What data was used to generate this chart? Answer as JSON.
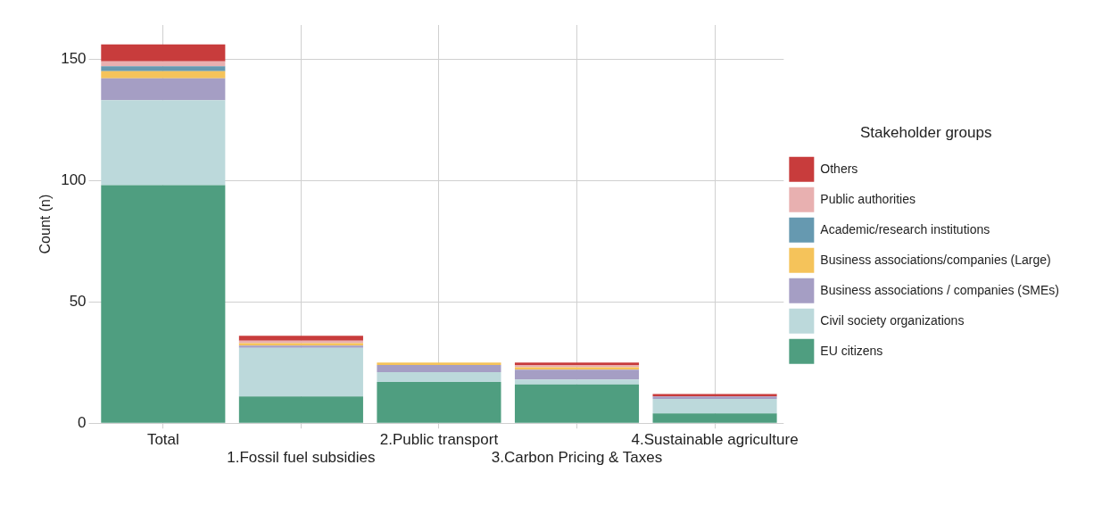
{
  "chart_data": {
    "type": "bar",
    "stacked": true,
    "ylabel": "Count (n)",
    "legend_title": "Stakeholder groups",
    "legend": "right",
    "grid": true,
    "categories": [
      "Total",
      "1.Fossil fuel subsidies",
      "2.Public transport",
      "3.Carbon Pricing & Taxes",
      "4.Sustainable agriculture"
    ],
    "ylim": [
      0,
      164
    ],
    "yticks": [
      0,
      50,
      100,
      150
    ],
    "series": [
      {
        "name": "EU citizens",
        "color": "#4f9e80",
        "values": [
          98,
          11,
          17,
          16,
          4
        ]
      },
      {
        "name": "Civil society organizations",
        "color": "#bcd9db",
        "values": [
          35,
          20,
          4,
          2,
          6
        ]
      },
      {
        "name": "Business associations / companies (SMEs)",
        "color": "#a59ec4",
        "values": [
          9,
          1,
          3,
          4,
          1
        ]
      },
      {
        "name": "Business associations/companies (Large)",
        "color": "#f5c35a",
        "values": [
          3,
          1,
          1,
          1,
          0
        ]
      },
      {
        "name": "Academic/research institutions",
        "color": "#6699b0",
        "values": [
          2,
          0,
          0,
          0,
          0
        ]
      },
      {
        "name": "Public authorities",
        "color": "#e8b0b0",
        "values": [
          2,
          1,
          0,
          1,
          0
        ]
      },
      {
        "name": "Others",
        "color": "#c83c3c",
        "values": [
          7,
          2,
          0,
          1,
          1
        ]
      }
    ]
  }
}
